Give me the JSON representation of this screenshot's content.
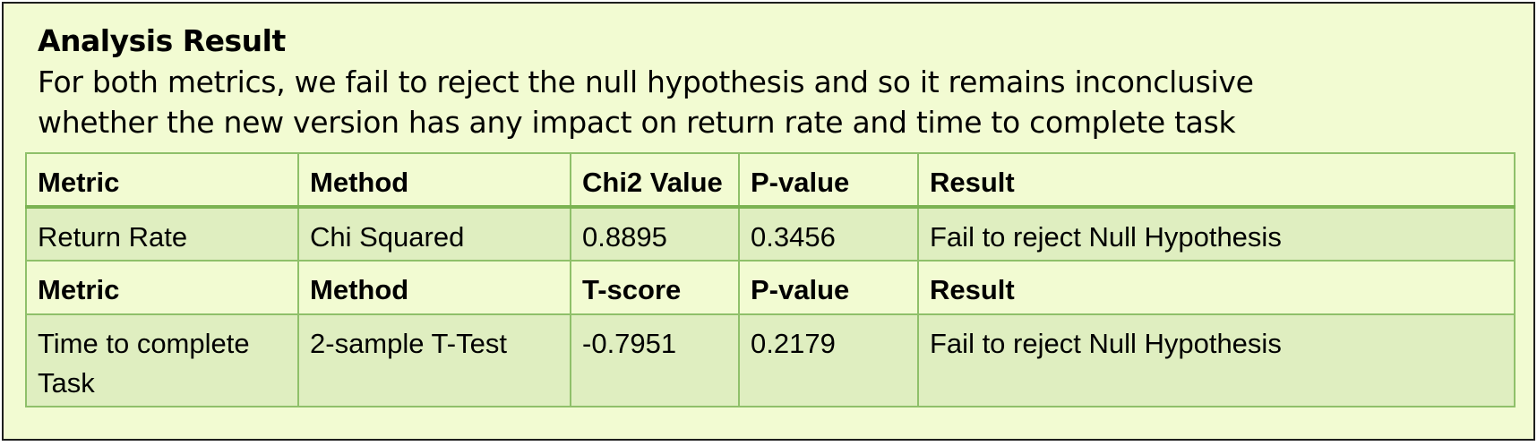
{
  "heading": "Analysis Result",
  "summary": [
    "For both metrics, we fail to reject the null hypothesis and so it remains inconclusive",
    "whether the new version has any impact on return rate and time to complete task"
  ],
  "table": {
    "rows": [
      {
        "kind": "header",
        "cells": [
          "Metric",
          "Method",
          "Chi2 Value",
          "P-value",
          "Result"
        ]
      },
      {
        "kind": "data",
        "cells": [
          "Return Rate",
          "Chi Squared",
          "0.8895",
          "0.3456",
          "Fail to reject Null Hypothesis"
        ]
      },
      {
        "kind": "header",
        "cells": [
          "Metric",
          "Method",
          "T-score",
          "P-value",
          "Result"
        ]
      },
      {
        "kind": "data",
        "cells": [
          "Time to complete Task",
          "2-sample T-Test",
          "-0.7951",
          "0.2179",
          "Fail to reject Null Hypothesis"
        ]
      }
    ]
  },
  "colors": {
    "background": "#f2fbd2",
    "data_row": "#dfeec0",
    "grid": "#8fc06a",
    "frame": "#1e1e1e"
  }
}
